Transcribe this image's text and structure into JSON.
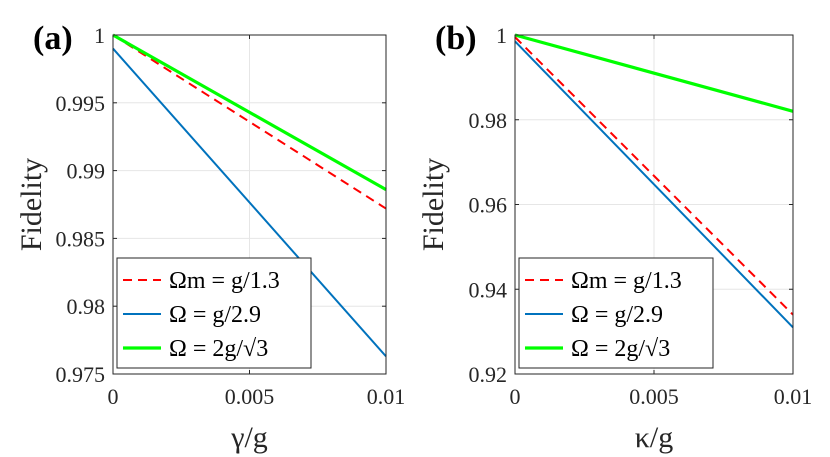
{
  "chart_data": [
    {
      "type": "line",
      "panel_label": "(a)",
      "xlabel": "γ/g",
      "ylabel": "Fidelity",
      "xlim": [
        0,
        0.01
      ],
      "ylim": [
        0.975,
        1
      ],
      "x_ticks": [
        0,
        0.005,
        0.01
      ],
      "x_tick_labels": [
        "0",
        "0.005",
        "0.01"
      ],
      "y_ticks": [
        0.975,
        0.98,
        0.985,
        0.99,
        0.995,
        1
      ],
      "y_tick_labels": [
        "0.975",
        "0.98",
        "0.985",
        "0.99",
        "0.995",
        "1"
      ],
      "grid": true,
      "legend_position": "bottom-left",
      "series": [
        {
          "name": "Ωm = g/1.3",
          "color": "#ff0000",
          "dash": "dashed",
          "x": [
            0,
            0.01
          ],
          "y": [
            1.0,
            0.9872
          ]
        },
        {
          "name": "Ω = g/2.9",
          "color": "#0072bd",
          "dash": "solid",
          "x": [
            0,
            0.01
          ],
          "y": [
            0.999,
            0.9763
          ]
        },
        {
          "name": "Ω = 2g/√3",
          "color": "#00ff00",
          "dash": "solid",
          "x": [
            0,
            0.01
          ],
          "y": [
            1.0,
            0.9886
          ]
        }
      ]
    },
    {
      "type": "line",
      "panel_label": "(b)",
      "xlabel": "κ/g",
      "ylabel": "Fidelity",
      "xlim": [
        0,
        0.01
      ],
      "ylim": [
        0.92,
        1
      ],
      "x_ticks": [
        0,
        0.005,
        0.01
      ],
      "x_tick_labels": [
        "0",
        "0.005",
        "0.01"
      ],
      "y_ticks": [
        0.92,
        0.94,
        0.96,
        0.98,
        1
      ],
      "y_tick_labels": [
        "0.92",
        "0.94",
        "0.96",
        "0.98",
        "1"
      ],
      "grid": true,
      "legend_position": "bottom-left",
      "series": [
        {
          "name": "Ωm = g/1.3",
          "color": "#ff0000",
          "dash": "dashed",
          "x": [
            0,
            0.01
          ],
          "y": [
            0.9995,
            0.934
          ]
        },
        {
          "name": "Ω = g/2.9",
          "color": "#0072bd",
          "dash": "solid",
          "x": [
            0,
            0.01
          ],
          "y": [
            0.9985,
            0.931
          ]
        },
        {
          "name": "Ω = 2g/√3",
          "color": "#00ff00",
          "dash": "solid",
          "x": [
            0,
            0.01
          ],
          "y": [
            1.0,
            0.982
          ]
        }
      ]
    }
  ]
}
